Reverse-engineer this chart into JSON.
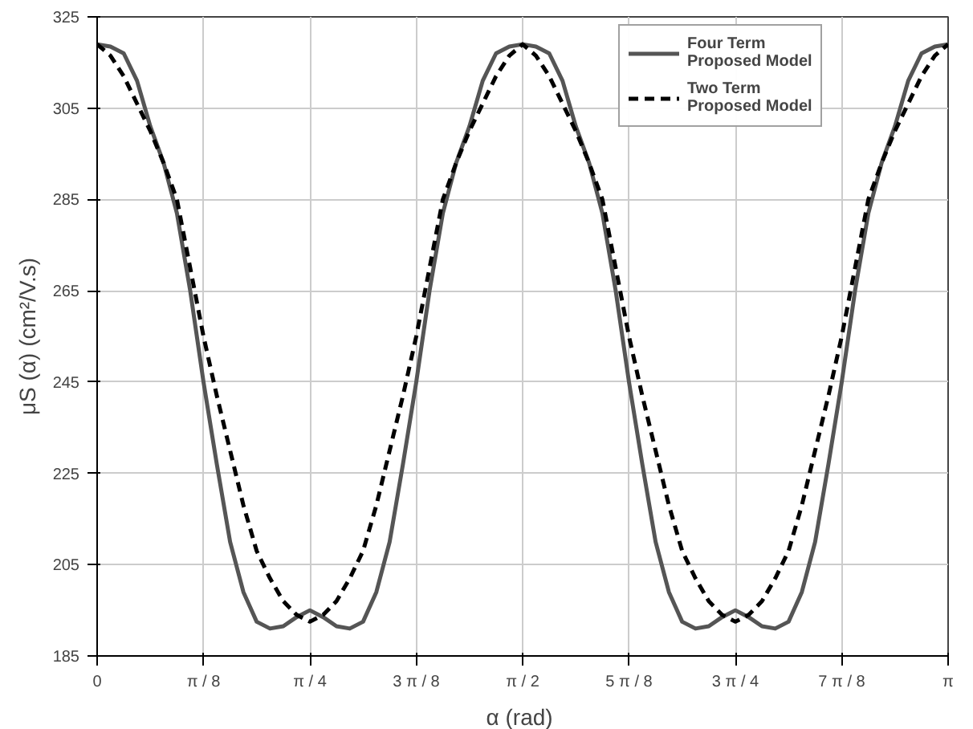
{
  "chart_data": {
    "type": "line",
    "xlabel": "α  (rad)",
    "ylabel": "μS (α) (cm²/V.s)",
    "x": [
      0,
      0.0491,
      0.0982,
      0.1473,
      0.1963,
      0.2454,
      0.2945,
      0.3436,
      0.3927,
      0.4418,
      0.4909,
      0.54,
      0.589,
      0.6381,
      0.6872,
      0.7363,
      0.7854,
      0.8345,
      0.8836,
      0.9327,
      0.9817,
      1.0308,
      1.0799,
      1.129,
      1.1781,
      1.2272,
      1.2763,
      1.3254,
      1.3744,
      1.4235,
      1.4726,
      1.5217,
      1.5708,
      1.6199,
      1.669,
      1.7181,
      1.7671,
      1.8162,
      1.8653,
      1.9144,
      1.9635,
      2.0126,
      2.0617,
      2.1108,
      2.1598,
      2.2089,
      2.258,
      2.3071,
      2.3562,
      2.4053,
      2.4544,
      2.5035,
      2.5525,
      2.6016,
      2.6507,
      2.6998,
      2.7489,
      2.798,
      2.8471,
      2.8962,
      2.9452,
      2.9943,
      3.0434,
      3.0925,
      3.1416
    ],
    "series": [
      {
        "name": "Four Term\nProposed Model",
        "color": "#555555",
        "line_style": "solid",
        "values": [
          319,
          318.5,
          317,
          311,
          301,
          293,
          282,
          265,
          245,
          227,
          210,
          199,
          192.5,
          191,
          191.5,
          193.5,
          195,
          193.5,
          191.5,
          191,
          192.5,
          199,
          210,
          227,
          245,
          265,
          282,
          293,
          301,
          311,
          317,
          318.5,
          319,
          318.5,
          317,
          311,
          301,
          293,
          282,
          265,
          245,
          227,
          210,
          199,
          192.5,
          191,
          191.5,
          193.5,
          195,
          193.5,
          191.5,
          191,
          192.5,
          199,
          210,
          227,
          245,
          265,
          282,
          293,
          301,
          311,
          317,
          318.5,
          319
        ]
      },
      {
        "name": "Two Term\nProposed Model",
        "color": "#000000",
        "line_style": "dashed",
        "values": [
          319,
          316.5,
          312,
          306,
          300,
          293,
          285,
          270,
          255,
          242,
          230,
          218,
          208,
          202,
          197,
          194,
          192.5,
          194,
          197,
          202,
          208,
          218,
          230,
          242,
          255,
          270,
          285,
          293,
          300,
          306,
          312,
          316.5,
          319,
          316.5,
          312,
          306,
          300,
          293,
          285,
          270,
          255,
          242,
          230,
          218,
          208,
          202,
          197,
          194,
          192.5,
          194,
          197,
          202,
          208,
          218,
          230,
          242,
          255,
          270,
          285,
          293,
          300,
          306,
          312,
          316.5,
          319
        ]
      }
    ],
    "xlim": [
      0,
      3.1416
    ],
    "xticks": [
      0,
      {
        "value": 0.3927,
        "label": "π / 8"
      },
      {
        "value": 0.7854,
        "label": "π / 4"
      },
      {
        "value": 1.1781,
        "label": "3 π / 8"
      },
      {
        "value": 1.5708,
        "label": "π / 2"
      },
      {
        "value": 1.9635,
        "label": "5 π / 8"
      },
      {
        "value": 2.3562,
        "label": "3 π / 4"
      },
      {
        "value": 2.7489,
        "label": "7 π / 8"
      },
      {
        "value": 3.1416,
        "label": "π"
      }
    ],
    "ylim": [
      185,
      325
    ],
    "yticks": [
      185,
      205,
      225,
      245,
      265,
      285,
      305,
      325
    ],
    "grid": true,
    "legend": "top right"
  }
}
